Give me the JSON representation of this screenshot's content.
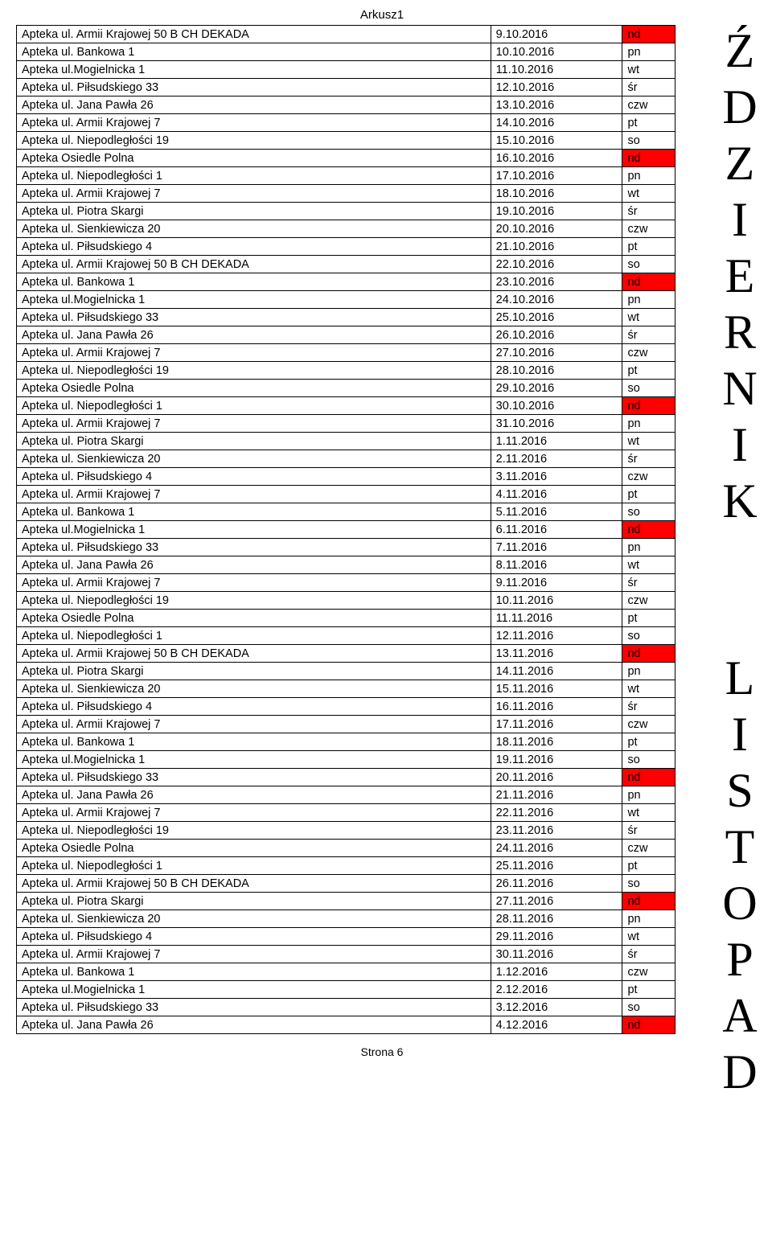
{
  "sheet_title": "Arkusz1",
  "footer": "Strona 6",
  "months": [
    {
      "label": "ŹDZIERNIK"
    },
    {
      "label": "LISTOPAD"
    }
  ],
  "colors": {
    "nd_bg": "#ff0000",
    "border": "#000000",
    "bg": "#ffffff"
  },
  "rows": [
    {
      "name": "Apteka ul. Armii Krajowej 50 B CH DEKADA",
      "date": "9.10.2016",
      "day": "nd"
    },
    {
      "name": "Apteka ul. Bankowa 1",
      "date": "10.10.2016",
      "day": "pn"
    },
    {
      "name": "Apteka ul.Mogielnicka 1",
      "date": "11.10.2016",
      "day": "wt"
    },
    {
      "name": "Apteka ul. Piłsudskiego 33",
      "date": "12.10.2016",
      "day": "śr"
    },
    {
      "name": "Apteka ul. Jana Pawła 26",
      "date": "13.10.2016",
      "day": "czw"
    },
    {
      "name": "Apteka ul. Armii Krajowej 7",
      "date": "14.10.2016",
      "day": "pt"
    },
    {
      "name": "Apteka  ul. Niepodległości 19",
      "date": "15.10.2016",
      "day": "so"
    },
    {
      "name": "Apteka Osiedle Polna",
      "date": "16.10.2016",
      "day": "nd"
    },
    {
      "name": "Apteka ul. Niepodległości 1",
      "date": "17.10.2016",
      "day": "pn"
    },
    {
      "name": "Apteka ul. Armii Krajowej 7",
      "date": "18.10.2016",
      "day": "wt"
    },
    {
      "name": "Apteka ul. Piotra Skargi",
      "date": "19.10.2016",
      "day": "śr"
    },
    {
      "name": "Apteka ul. Sienkiewicza 20",
      "date": "20.10.2016",
      "day": "czw"
    },
    {
      "name": "Apteka ul. Piłsudskiego 4",
      "date": "21.10.2016",
      "day": "pt"
    },
    {
      "name": "Apteka ul. Armii Krajowej 50 B CH DEKADA",
      "date": "22.10.2016",
      "day": "so"
    },
    {
      "name": "Apteka ul. Bankowa 1",
      "date": "23.10.2016",
      "day": "nd"
    },
    {
      "name": "Apteka ul.Mogielnicka 1",
      "date": "24.10.2016",
      "day": "pn"
    },
    {
      "name": "Apteka ul. Piłsudskiego 33",
      "date": "25.10.2016",
      "day": "wt"
    },
    {
      "name": "Apteka ul. Jana Pawła 26",
      "date": "26.10.2016",
      "day": "śr"
    },
    {
      "name": "Apteka ul. Armii Krajowej 7",
      "date": "27.10.2016",
      "day": "czw"
    },
    {
      "name": "Apteka  ul. Niepodległości 19",
      "date": "28.10.2016",
      "day": "pt"
    },
    {
      "name": "Apteka Osiedle Polna",
      "date": "29.10.2016",
      "day": "so"
    },
    {
      "name": "Apteka ul. Niepodległości 1",
      "date": "30.10.2016",
      "day": "nd"
    },
    {
      "name": "Apteka ul. Armii Krajowej 7",
      "date": "31.10.2016",
      "day": "pn"
    },
    {
      "name": "Apteka ul. Piotra Skargi",
      "date": "1.11.2016",
      "day": "wt"
    },
    {
      "name": "Apteka ul. Sienkiewicza 20",
      "date": "2.11.2016",
      "day": "śr"
    },
    {
      "name": "Apteka ul. Piłsudskiego 4",
      "date": "3.11.2016",
      "day": "czw"
    },
    {
      "name": "Apteka ul. Armii Krajowej 7",
      "date": "4.11.2016",
      "day": "pt"
    },
    {
      "name": "Apteka ul. Bankowa 1",
      "date": "5.11.2016",
      "day": "so"
    },
    {
      "name": "Apteka ul.Mogielnicka 1",
      "date": "6.11.2016",
      "day": "nd"
    },
    {
      "name": "Apteka ul. Piłsudskiego 33",
      "date": "7.11.2016",
      "day": "pn"
    },
    {
      "name": "Apteka ul. Jana Pawła 26",
      "date": "8.11.2016",
      "day": "wt"
    },
    {
      "name": "Apteka ul. Armii Krajowej 7",
      "date": "9.11.2016",
      "day": "śr"
    },
    {
      "name": "Apteka  ul. Niepodległości 19",
      "date": "10.11.2016",
      "day": "czw"
    },
    {
      "name": "Apteka Osiedle Polna",
      "date": "11.11.2016",
      "day": "pt"
    },
    {
      "name": "Apteka ul. Niepodległości 1",
      "date": "12.11.2016",
      "day": "so"
    },
    {
      "name": "Apteka ul. Armii Krajowej 50 B CH DEKADA",
      "date": "13.11.2016",
      "day": "nd"
    },
    {
      "name": "Apteka ul. Piotra Skargi",
      "date": "14.11.2016",
      "day": "pn"
    },
    {
      "name": "Apteka ul. Sienkiewicza 20",
      "date": "15.11.2016",
      "day": "wt"
    },
    {
      "name": "Apteka ul. Piłsudskiego 4",
      "date": "16.11.2016",
      "day": "śr"
    },
    {
      "name": "Apteka ul. Armii Krajowej 7",
      "date": "17.11.2016",
      "day": "czw"
    },
    {
      "name": "Apteka ul. Bankowa 1",
      "date": "18.11.2016",
      "day": "pt"
    },
    {
      "name": "Apteka ul.Mogielnicka 1",
      "date": "19.11.2016",
      "day": "so"
    },
    {
      "name": "Apteka ul. Piłsudskiego 33",
      "date": "20.11.2016",
      "day": "nd"
    },
    {
      "name": "Apteka ul. Jana Pawła 26",
      "date": "21.11.2016",
      "day": "pn"
    },
    {
      "name": "Apteka ul. Armii Krajowej 7",
      "date": "22.11.2016",
      "day": "wt"
    },
    {
      "name": "Apteka  ul. Niepodległości 19",
      "date": "23.11.2016",
      "day": "śr"
    },
    {
      "name": "Apteka Osiedle Polna",
      "date": "24.11.2016",
      "day": "czw"
    },
    {
      "name": "Apteka ul. Niepodległości 1",
      "date": "25.11.2016",
      "day": "pt"
    },
    {
      "name": "Apteka ul. Armii Krajowej 50 B CH DEKADA",
      "date": "26.11.2016",
      "day": "so"
    },
    {
      "name": "Apteka ul. Piotra Skargi",
      "date": "27.11.2016",
      "day": "nd"
    },
    {
      "name": "Apteka ul. Sienkiewicza 20",
      "date": "28.11.2016",
      "day": "pn"
    },
    {
      "name": "Apteka ul. Piłsudskiego 4",
      "date": "29.11.2016",
      "day": "wt"
    },
    {
      "name": "Apteka ul. Armii Krajowej 7",
      "date": "30.11.2016",
      "day": "śr"
    },
    {
      "name": "Apteka ul. Bankowa 1",
      "date": "1.12.2016",
      "day": "czw"
    },
    {
      "name": "Apteka ul.Mogielnicka 1",
      "date": "2.12.2016",
      "day": "pt"
    },
    {
      "name": "Apteka ul. Piłsudskiego 33",
      "date": "3.12.2016",
      "day": "so"
    },
    {
      "name": "Apteka ul. Jana Pawła 26",
      "date": "4.12.2016",
      "day": "nd"
    }
  ]
}
